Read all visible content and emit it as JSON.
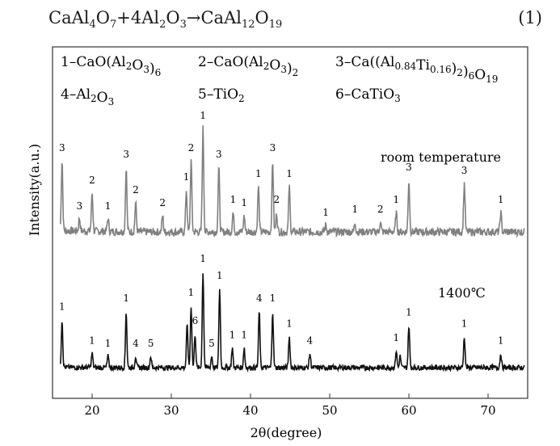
{
  "equation": {
    "parts": [
      {
        "t": "CaAl"
      },
      {
        "t": "4",
        "sub": true
      },
      {
        "t": "O"
      },
      {
        "t": "7",
        "sub": true
      },
      {
        "t": "+4Al"
      },
      {
        "t": "2",
        "sub": true
      },
      {
        "t": "O"
      },
      {
        "t": "3",
        "sub": true
      },
      {
        "t": "→CaAl"
      },
      {
        "t": "12",
        "sub": true
      },
      {
        "t": "O"
      },
      {
        "t": "19",
        "sub": true
      }
    ],
    "number": "(1)"
  },
  "legend": [
    [
      {
        "t": "1–CaO(Al"
      },
      {
        "t": "2",
        "sub": true
      },
      {
        "t": "O"
      },
      {
        "t": "3",
        "sub": true
      },
      {
        "t": ")"
      },
      {
        "t": "6",
        "sub": true
      }
    ],
    [
      {
        "t": "2–CaO(Al"
      },
      {
        "t": "2",
        "sub": true
      },
      {
        "t": "O"
      },
      {
        "t": "3",
        "sub": true
      },
      {
        "t": ")"
      },
      {
        "t": "2",
        "sub": true
      }
    ],
    [
      {
        "t": "3–Ca((Al"
      },
      {
        "t": "0.84",
        "sub": true
      },
      {
        "t": "Ti"
      },
      {
        "t": "0.16",
        "sub": true
      },
      {
        "t": ")"
      },
      {
        "t": "2",
        "sub": true
      },
      {
        "t": ")"
      },
      {
        "t": "6",
        "sub": true
      },
      {
        "t": "O"
      },
      {
        "t": "19",
        "sub": true
      }
    ],
    [
      {
        "t": "4–Al"
      },
      {
        "t": "2",
        "sub": true
      },
      {
        "t": "O"
      },
      {
        "t": "3",
        "sub": true
      }
    ],
    [
      {
        "t": "5–TiO"
      },
      {
        "t": "2",
        "sub": true
      }
    ],
    [
      {
        "t": "6–CaTiO"
      },
      {
        "t": "3",
        "sub": true
      }
    ]
  ],
  "colors": {
    "room_temperature": "#808080",
    "1400C": "#111111"
  },
  "chart_data": {
    "type": "line",
    "xlabel": "2θ(degree)",
    "ylabel": "Intensity(a.u.)",
    "xlim": [
      15,
      75
    ],
    "xticks": [
      20,
      30,
      40,
      50,
      60,
      70
    ],
    "y_ticks_shown": false,
    "series": [
      {
        "name": "room temperature",
        "baseline": 0,
        "noise": 0.6,
        "peaks": [
          {
            "x": 16.2,
            "y": 11,
            "label": "3"
          },
          {
            "x": 18.4,
            "y": 2,
            "label": "3"
          },
          {
            "x": 20.0,
            "y": 6,
            "label": "2"
          },
          {
            "x": 22.0,
            "y": 2,
            "label": "1"
          },
          {
            "x": 24.3,
            "y": 10,
            "label": "3"
          },
          {
            "x": 25.5,
            "y": 4.5,
            "label": "2"
          },
          {
            "x": 28.9,
            "y": 2.5,
            "label": "2"
          },
          {
            "x": 31.9,
            "y": 6.5,
            "label": "1"
          },
          {
            "x": 32.5,
            "y": 11,
            "label": "2"
          },
          {
            "x": 34.0,
            "y": 16,
            "label": "1"
          },
          {
            "x": 36.0,
            "y": 10,
            "label": "3"
          },
          {
            "x": 37.8,
            "y": 3,
            "label": "1"
          },
          {
            "x": 39.2,
            "y": 2.5,
            "label": "1"
          },
          {
            "x": 41.0,
            "y": 7,
            "label": "1"
          },
          {
            "x": 42.8,
            "y": 11,
            "label": "3"
          },
          {
            "x": 43.3,
            "y": 3,
            "label": "2"
          },
          {
            "x": 44.9,
            "y": 7,
            "label": "1"
          },
          {
            "x": 49.5,
            "y": 1,
            "label": "1"
          },
          {
            "x": 53.2,
            "y": 1.5,
            "label": "1"
          },
          {
            "x": 56.4,
            "y": 1.5,
            "label": "2"
          },
          {
            "x": 58.4,
            "y": 3,
            "label": "1"
          },
          {
            "x": 60.0,
            "y": 8,
            "label": "3"
          },
          {
            "x": 67.0,
            "y": 7.5,
            "label": "3"
          },
          {
            "x": 71.6,
            "y": 3,
            "label": "1"
          }
        ]
      },
      {
        "name": "1400℃",
        "baseline": 0,
        "noise": 0.45,
        "peaks": [
          {
            "x": 16.2,
            "y": 8.5,
            "label": "1"
          },
          {
            "x": 20.0,
            "y": 2.5,
            "label": "1"
          },
          {
            "x": 22.0,
            "y": 2,
            "label": "1"
          },
          {
            "x": 24.3,
            "y": 10,
            "label": "1"
          },
          {
            "x": 25.5,
            "y": 2,
            "label": "4"
          },
          {
            "x": 27.4,
            "y": 2,
            "label": "5"
          },
          {
            "x": 32.0,
            "y": 7.5
          },
          {
            "x": 32.5,
            "y": 11,
            "label": "1"
          },
          {
            "x": 33.0,
            "y": 6,
            "label": "6"
          },
          {
            "x": 34.0,
            "y": 17,
            "label": "1"
          },
          {
            "x": 35.1,
            "y": 2,
            "label": "5"
          },
          {
            "x": 36.1,
            "y": 14,
            "label": "1"
          },
          {
            "x": 37.7,
            "y": 3.5,
            "label": "1"
          },
          {
            "x": 39.2,
            "y": 3.5,
            "label": "1"
          },
          {
            "x": 41.1,
            "y": 10,
            "label": "4"
          },
          {
            "x": 42.8,
            "y": 10,
            "label": "1"
          },
          {
            "x": 44.9,
            "y": 5.5,
            "label": "1"
          },
          {
            "x": 47.5,
            "y": 2.5,
            "label": "4"
          },
          {
            "x": 58.4,
            "y": 3,
            "label": "1"
          },
          {
            "x": 58.9,
            "y": 2
          },
          {
            "x": 60.0,
            "y": 7.5,
            "label": "1"
          },
          {
            "x": 67.0,
            "y": 5.5,
            "label": "1"
          },
          {
            "x": 71.6,
            "y": 2.5,
            "label": "1"
          }
        ]
      }
    ]
  }
}
